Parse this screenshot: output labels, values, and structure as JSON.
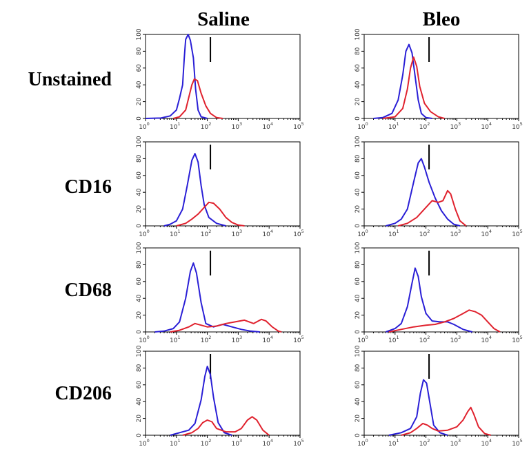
{
  "columns": [
    "Saline",
    "Bleo"
  ],
  "rows": [
    "Unstained",
    "CD16",
    "CD68",
    "CD206"
  ],
  "colors": {
    "blue": "#2a1fd6",
    "red": "#e0222e",
    "marker": "#000000"
  },
  "chart_data": {
    "type": "line",
    "description_of_axes": "log10 fluorescence intensity on x (10^0 to 10^5); y ticks 0-100",
    "xscale": "log",
    "xlim": [
      0,
      5
    ],
    "ylim": [
      0,
      100
    ],
    "x_tick_labels": [
      [
        "10",
        "0"
      ],
      [
        "10",
        "1"
      ],
      [
        "10",
        "2"
      ],
      [
        "10",
        "3"
      ],
      [
        "10",
        "4"
      ],
      [
        "10",
        "5"
      ]
    ],
    "y_tick_labels": [
      "0",
      "20",
      "40",
      "60",
      "80",
      "100"
    ],
    "marker_x": 2.1,
    "panels": [
      {
        "row": "Unstained",
        "col": "Saline",
        "blue": [
          [
            0,
            0
          ],
          [
            0.5,
            0.5
          ],
          [
            0.8,
            3
          ],
          [
            1,
            10
          ],
          [
            1.1,
            24
          ],
          [
            1.2,
            40
          ],
          [
            1.25,
            70
          ],
          [
            1.3,
            94
          ],
          [
            1.38,
            100
          ],
          [
            1.45,
            93
          ],
          [
            1.55,
            72
          ],
          [
            1.62,
            35
          ],
          [
            1.7,
            10
          ],
          [
            1.8,
            2
          ],
          [
            2,
            0
          ]
        ],
        "red": [
          [
            0.9,
            0
          ],
          [
            1.1,
            2
          ],
          [
            1.3,
            10
          ],
          [
            1.4,
            25
          ],
          [
            1.5,
            40
          ],
          [
            1.58,
            47
          ],
          [
            1.68,
            45
          ],
          [
            1.8,
            30
          ],
          [
            1.95,
            15
          ],
          [
            2.1,
            6
          ],
          [
            2.3,
            1
          ],
          [
            2.5,
            0
          ]
        ]
      },
      {
        "row": "Unstained",
        "col": "Bleo",
        "blue": [
          [
            0.3,
            0
          ],
          [
            0.6,
            1
          ],
          [
            0.9,
            6
          ],
          [
            1.1,
            22
          ],
          [
            1.25,
            52
          ],
          [
            1.35,
            80
          ],
          [
            1.45,
            88
          ],
          [
            1.55,
            78
          ],
          [
            1.65,
            50
          ],
          [
            1.75,
            22
          ],
          [
            1.85,
            6
          ],
          [
            2,
            1
          ],
          [
            2.2,
            0
          ]
        ],
        "red": [
          [
            0.6,
            0
          ],
          [
            1.0,
            2
          ],
          [
            1.25,
            12
          ],
          [
            1.4,
            35
          ],
          [
            1.5,
            60
          ],
          [
            1.6,
            73
          ],
          [
            1.7,
            62
          ],
          [
            1.8,
            38
          ],
          [
            1.95,
            18
          ],
          [
            2.15,
            8
          ],
          [
            2.4,
            2
          ],
          [
            2.6,
            0
          ]
        ]
      },
      {
        "row": "CD16",
        "col": "Saline",
        "blue": [
          [
            0.6,
            0
          ],
          [
            0.8,
            2
          ],
          [
            1,
            6
          ],
          [
            1.2,
            20
          ],
          [
            1.35,
            48
          ],
          [
            1.5,
            78
          ],
          [
            1.6,
            86
          ],
          [
            1.7,
            76
          ],
          [
            1.8,
            48
          ],
          [
            1.9,
            25
          ],
          [
            2.05,
            10
          ],
          [
            2.3,
            3
          ],
          [
            2.6,
            0
          ]
        ],
        "red": [
          [
            1.0,
            0
          ],
          [
            1.3,
            3
          ],
          [
            1.5,
            8
          ],
          [
            1.7,
            14
          ],
          [
            1.9,
            22
          ],
          [
            2.05,
            28
          ],
          [
            2.2,
            27
          ],
          [
            2.4,
            20
          ],
          [
            2.6,
            10
          ],
          [
            2.8,
            4
          ],
          [
            3,
            1
          ],
          [
            3.2,
            0
          ]
        ]
      },
      {
        "row": "CD16",
        "col": "Bleo",
        "blue": [
          [
            0.7,
            0
          ],
          [
            1,
            3
          ],
          [
            1.2,
            8
          ],
          [
            1.4,
            20
          ],
          [
            1.6,
            52
          ],
          [
            1.75,
            75
          ],
          [
            1.85,
            80
          ],
          [
            1.95,
            70
          ],
          [
            2.1,
            52
          ],
          [
            2.3,
            33
          ],
          [
            2.5,
            18
          ],
          [
            2.7,
            8
          ],
          [
            2.9,
            2
          ],
          [
            3.1,
            0
          ]
        ],
        "red": [
          [
            1.1,
            0
          ],
          [
            1.4,
            3
          ],
          [
            1.7,
            10
          ],
          [
            2.0,
            22
          ],
          [
            2.2,
            30
          ],
          [
            2.4,
            28
          ],
          [
            2.55,
            30
          ],
          [
            2.7,
            42
          ],
          [
            2.8,
            38
          ],
          [
            2.95,
            20
          ],
          [
            3.1,
            6
          ],
          [
            3.3,
            0
          ]
        ]
      },
      {
        "row": "CD68",
        "col": "Saline",
        "blue": [
          [
            0.3,
            0
          ],
          [
            0.6,
            1
          ],
          [
            0.9,
            4
          ],
          [
            1.1,
            12
          ],
          [
            1.3,
            40
          ],
          [
            1.45,
            72
          ],
          [
            1.55,
            82
          ],
          [
            1.65,
            70
          ],
          [
            1.8,
            35
          ],
          [
            1.95,
            10
          ],
          [
            2.2,
            6
          ],
          [
            2.5,
            9
          ],
          [
            2.8,
            6
          ],
          [
            3.1,
            3
          ],
          [
            3.4,
            1
          ],
          [
            3.7,
            0
          ]
        ],
        "red": [
          [
            0.8,
            0
          ],
          [
            1.1,
            2
          ],
          [
            1.4,
            6
          ],
          [
            1.6,
            10
          ],
          [
            1.8,
            8
          ],
          [
            2.0,
            6
          ],
          [
            2.3,
            7
          ],
          [
            2.6,
            10
          ],
          [
            2.9,
            12
          ],
          [
            3.2,
            14
          ],
          [
            3.5,
            10
          ],
          [
            3.75,
            15
          ],
          [
            3.9,
            13
          ],
          [
            4.1,
            6
          ],
          [
            4.3,
            1
          ],
          [
            4.4,
            0
          ]
        ]
      },
      {
        "row": "CD68",
        "col": "Bleo",
        "blue": [
          [
            0.7,
            0
          ],
          [
            1,
            4
          ],
          [
            1.2,
            10
          ],
          [
            1.4,
            30
          ],
          [
            1.55,
            58
          ],
          [
            1.65,
            76
          ],
          [
            1.75,
            66
          ],
          [
            1.85,
            42
          ],
          [
            2.0,
            22
          ],
          [
            2.2,
            13
          ],
          [
            2.45,
            12
          ],
          [
            2.7,
            12
          ],
          [
            2.9,
            9
          ],
          [
            3.2,
            3
          ],
          [
            3.5,
            0
          ]
        ],
        "red": [
          [
            0.8,
            0
          ],
          [
            1.2,
            3
          ],
          [
            1.6,
            6
          ],
          [
            2.0,
            8
          ],
          [
            2.3,
            9
          ],
          [
            2.6,
            12
          ],
          [
            2.9,
            16
          ],
          [
            3.2,
            22
          ],
          [
            3.4,
            26
          ],
          [
            3.6,
            24
          ],
          [
            3.8,
            20
          ],
          [
            4.0,
            12
          ],
          [
            4.2,
            4
          ],
          [
            4.4,
            0
          ]
        ]
      },
      {
        "row": "CD206",
        "col": "Saline",
        "blue": [
          [
            0.8,
            0
          ],
          [
            1.1,
            3
          ],
          [
            1.4,
            6
          ],
          [
            1.6,
            14
          ],
          [
            1.8,
            42
          ],
          [
            1.92,
            70
          ],
          [
            2.0,
            82
          ],
          [
            2.1,
            72
          ],
          [
            2.2,
            45
          ],
          [
            2.35,
            15
          ],
          [
            2.55,
            3
          ],
          [
            2.8,
            0
          ]
        ],
        "red": [
          [
            1.2,
            0
          ],
          [
            1.5,
            3
          ],
          [
            1.7,
            8
          ],
          [
            1.85,
            15
          ],
          [
            2.0,
            18
          ],
          [
            2.15,
            16
          ],
          [
            2.3,
            8
          ],
          [
            2.6,
            4
          ],
          [
            2.9,
            4
          ],
          [
            3.1,
            8
          ],
          [
            3.3,
            18
          ],
          [
            3.45,
            22
          ],
          [
            3.6,
            18
          ],
          [
            3.8,
            6
          ],
          [
            4.0,
            0
          ]
        ]
      },
      {
        "row": "CD206",
        "col": "Bleo",
        "blue": [
          [
            0.8,
            0
          ],
          [
            1.2,
            3
          ],
          [
            1.5,
            8
          ],
          [
            1.7,
            22
          ],
          [
            1.82,
            50
          ],
          [
            1.92,
            66
          ],
          [
            2.02,
            62
          ],
          [
            2.12,
            40
          ],
          [
            2.25,
            12
          ],
          [
            2.45,
            3
          ],
          [
            2.7,
            0
          ]
        ],
        "red": [
          [
            1.2,
            0
          ],
          [
            1.5,
            3
          ],
          [
            1.7,
            8
          ],
          [
            1.9,
            14
          ],
          [
            2.05,
            12
          ],
          [
            2.2,
            8
          ],
          [
            2.4,
            5
          ],
          [
            2.7,
            6
          ],
          [
            3.0,
            10
          ],
          [
            3.2,
            18
          ],
          [
            3.35,
            28
          ],
          [
            3.45,
            33
          ],
          [
            3.55,
            25
          ],
          [
            3.7,
            10
          ],
          [
            3.9,
            2
          ],
          [
            4.1,
            0
          ]
        ]
      }
    ]
  }
}
